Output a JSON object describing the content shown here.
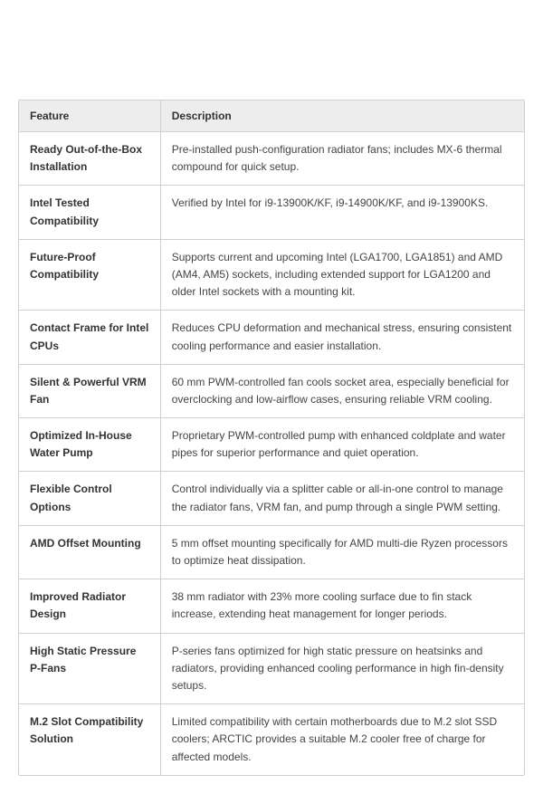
{
  "table": {
    "columns": [
      "Feature",
      "Description"
    ],
    "column_widths": [
      "28%",
      "72%"
    ],
    "header_bg": "#ededed",
    "border_color": "#d0d0d0",
    "header_text_color": "#333333",
    "feature_text_color": "#333333",
    "description_text_color": "#444444",
    "font_size": 12,
    "rows": [
      {
        "feature": "Ready Out-of-the-Box Installation",
        "description": "Pre-installed push-configuration radiator fans; includes MX-6 thermal compound for quick setup."
      },
      {
        "feature": "Intel Tested Compatibility",
        "description": "Verified by Intel for i9-13900K/KF, i9-14900K/KF, and i9-13900KS."
      },
      {
        "feature": "Future-Proof Compatibility",
        "description": "Supports current and upcoming Intel (LGA1700, LGA1851) and AMD (AM4, AM5) sockets, including extended support for LGA1200 and older Intel sockets with a mounting kit."
      },
      {
        "feature": "Contact Frame for Intel CPUs",
        "description": "Reduces CPU deformation and mechanical stress, ensuring consistent cooling performance and easier installation."
      },
      {
        "feature": "Silent & Powerful VRM Fan",
        "description": "60 mm PWM-controlled fan cools socket area, especially beneficial for overclocking and low-airflow cases, ensuring reliable VRM cooling."
      },
      {
        "feature": "Optimized In-House Water Pump",
        "description": "Proprietary PWM-controlled pump with enhanced coldplate and water pipes for superior performance and quiet operation."
      },
      {
        "feature": "Flexible Control Options",
        "description": "Control individually via a splitter cable or all-in-one control to manage the radiator fans, VRM fan, and pump through a single PWM setting."
      },
      {
        "feature": "AMD Offset Mounting",
        "description": "5 mm offset mounting specifically for AMD multi-die Ryzen processors to optimize heat dissipation."
      },
      {
        "feature": "Improved Radiator Design",
        "description": "38 mm radiator with 23% more cooling surface due to fin stack increase, extending heat management for longer periods."
      },
      {
        "feature": "High Static Pressure P-Fans",
        "description": "P-series fans optimized for high static pressure on heatsinks and radiators, providing enhanced cooling performance in high fin-density setups."
      },
      {
        "feature": "M.2 Slot Compatibility Solution",
        "description": "Limited compatibility with certain motherboards due to M.2 slot SSD coolers; ARCTIC provides a suitable M.2 cooler free of charge for affected models."
      }
    ]
  }
}
